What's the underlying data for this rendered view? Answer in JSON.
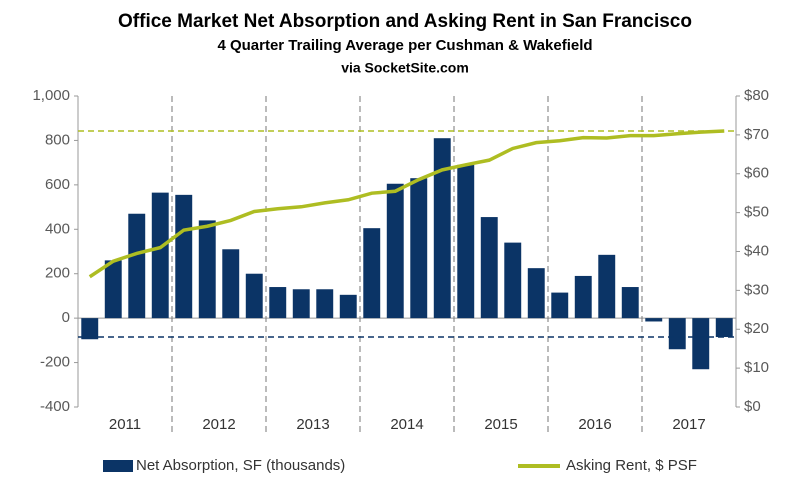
{
  "chart_data": {
    "type": "bar_line",
    "title": "Office Market Net Absorption and Asking Rent in San Francisco",
    "subtitle": "4 Quarter Trailing Average per Cushman & Wakefield",
    "source": "via SocketSite.com",
    "categories": [
      null,
      null,
      null,
      null,
      null,
      null,
      null,
      null,
      null,
      null,
      null,
      null,
      null,
      null,
      null,
      null,
      null,
      null,
      null,
      null,
      null,
      null,
      null,
      null,
      null,
      null,
      null,
      null
    ],
    "year_labels": [
      "2011",
      "2012",
      "2013",
      "2014",
      "2015",
      "2016",
      "2017"
    ],
    "series": [
      {
        "name": "Net Absorption, SF (thousands)",
        "color": "#0b3466",
        "axis": "y",
        "values": [
          -95,
          260,
          470,
          565,
          555,
          440,
          310,
          200,
          140,
          130,
          130,
          105,
          405,
          605,
          630,
          810,
          690,
          455,
          340,
          225,
          115,
          190,
          285,
          140,
          -15,
          -140,
          -230,
          -85
        ]
      },
      {
        "name": "Asking Rent, $ PSF",
        "color": "#aebd22",
        "axis": "y2",
        "values": [
          33.5,
          37.5,
          39.5,
          41,
          45.5,
          46.5,
          48,
          50.3,
          51,
          51.5,
          52.5,
          53.3,
          55,
          55.5,
          58.5,
          61,
          62.3,
          63.5,
          66.5,
          68,
          68.5,
          69.3,
          69.2,
          69.8,
          69.8,
          70.3,
          70.7,
          71
        ]
      }
    ],
    "ylim": [
      -400,
      1000
    ],
    "yticks": [
      -400,
      -200,
      0,
      200,
      400,
      600,
      800,
      {
        "value": 1000,
        "label": "1,000"
      }
    ],
    "y2lim": [
      0,
      80
    ],
    "y2ticks": [
      {
        "value": 0,
        "label": "$0"
      },
      {
        "value": 10,
        "label": "$10"
      },
      {
        "value": 20,
        "label": "$20"
      },
      {
        "value": 30,
        "label": "$30"
      },
      {
        "value": 40,
        "label": "$40"
      },
      {
        "value": 50,
        "label": "$50"
      },
      {
        "value": 60,
        "label": "$60"
      },
      {
        "value": 70,
        "label": "$70"
      },
      {
        "value": 80,
        "label": "$80"
      }
    ],
    "grid": false
  }
}
